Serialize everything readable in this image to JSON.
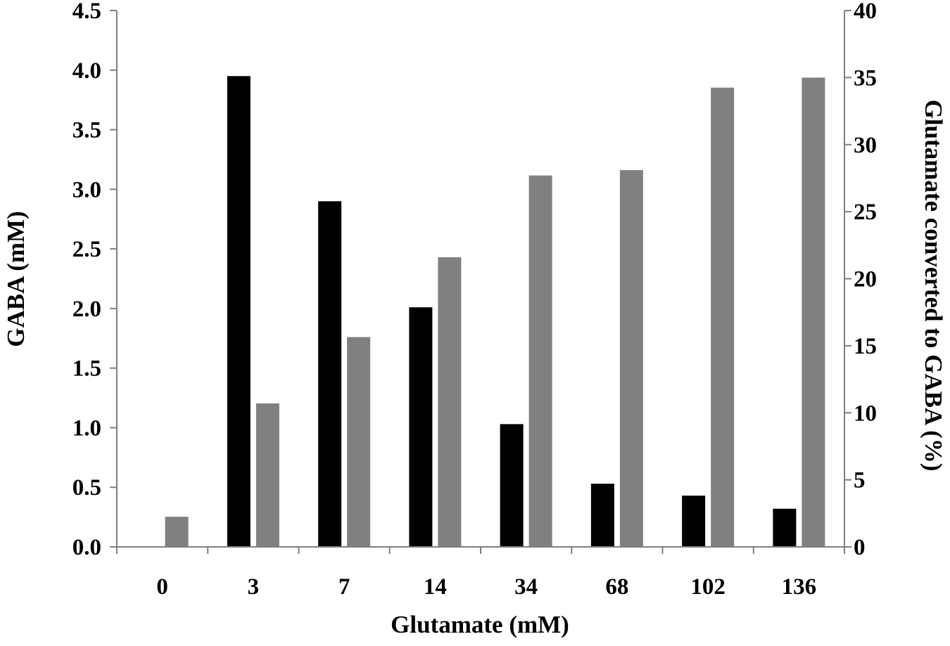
{
  "chart_data": {
    "type": "bar",
    "categories": [
      "0",
      "3",
      "7",
      "14",
      "34",
      "68",
      "102",
      "136"
    ],
    "series": [
      {
        "axis": "left",
        "color": "#000000",
        "values": [
          null,
          3.95,
          2.9,
          2.01,
          1.03,
          0.53,
          0.43,
          0.32
        ]
      },
      {
        "axis": "right",
        "color": "#808080",
        "values": [
          2.25,
          10.7,
          15.65,
          21.6,
          27.7,
          28.1,
          34.25,
          35.0
        ]
      }
    ],
    "xlabel": "Glutamate (mM)",
    "ylabel": "GABA (mM)",
    "y2label": "Glutamate converted to GABA (%)",
    "ylim": [
      0,
      4.5
    ],
    "y2lim": [
      0,
      40
    ],
    "yticks": [
      "0.0",
      "0.5",
      "1.0",
      "1.5",
      "2.0",
      "2.5",
      "3.0",
      "3.5",
      "4.0",
      "4.5"
    ],
    "y2ticks": [
      "0",
      "5",
      "10",
      "15",
      "20",
      "25",
      "30",
      "35",
      "40"
    ],
    "grid": false,
    "legend": "none"
  }
}
